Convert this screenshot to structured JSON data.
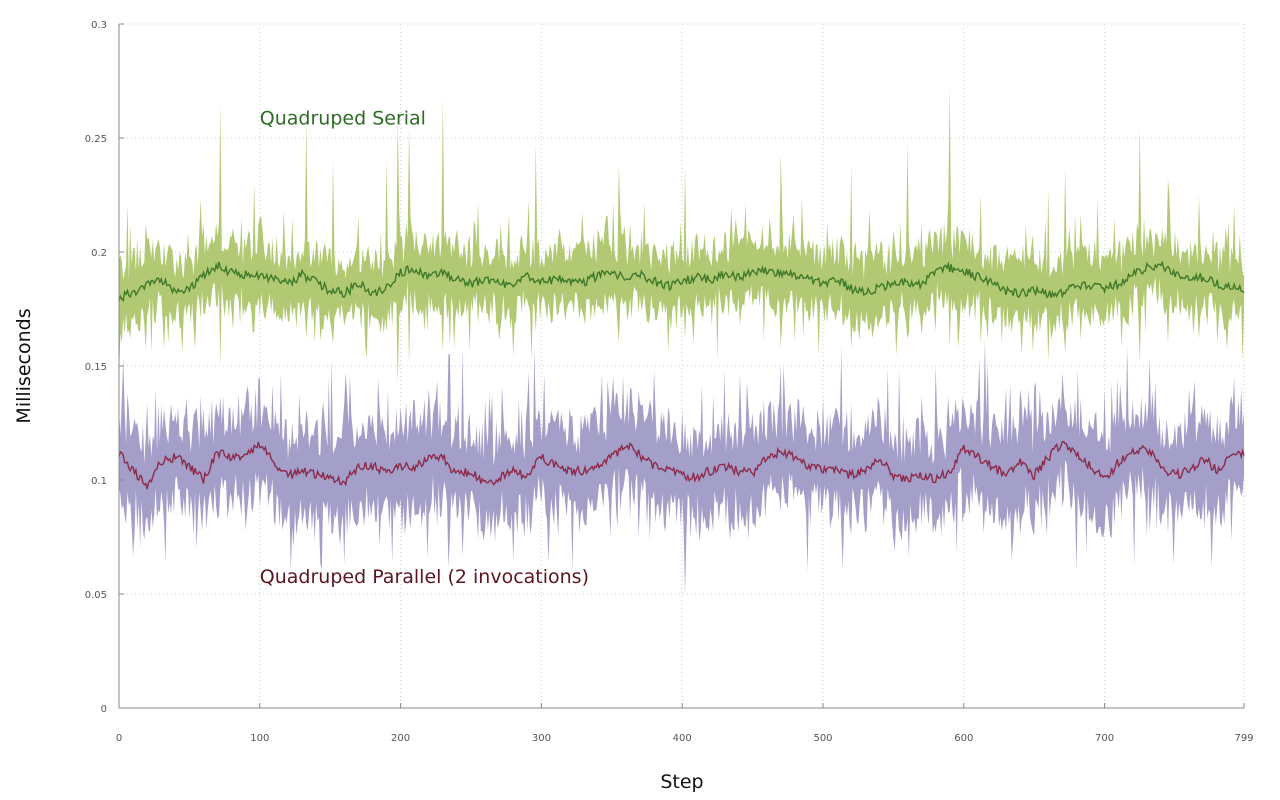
{
  "chart_data": {
    "type": "area",
    "title": "",
    "xlabel": "Step",
    "ylabel": "Milliseconds",
    "xlim": [
      0,
      799
    ],
    "ylim": [
      0,
      0.3
    ],
    "x_ticks": [
      0,
      100,
      200,
      300,
      400,
      500,
      600,
      700,
      799
    ],
    "x_tick_labels": [
      "0",
      "100",
      "200",
      "300",
      "400",
      "500",
      "600",
      "700",
      "799"
    ],
    "y_ticks": [
      0,
      0.05,
      0.1,
      0.15,
      0.2,
      0.25,
      0.3
    ],
    "y_tick_labels": [
      "0",
      "0.05",
      "0.1",
      "0.15",
      "0.2",
      "0.25",
      "0.3"
    ],
    "grid": true,
    "series": [
      {
        "name": "Quadruped Serial",
        "line_color": "#3f7a2a",
        "band_color": "#a9c466",
        "label_color": "#2e6b24",
        "mean_step": 10,
        "mean_values": [
          0.18,
          0.182,
          0.186,
          0.188,
          0.182,
          0.184,
          0.19,
          0.194,
          0.191,
          0.19,
          0.189,
          0.188,
          0.186,
          0.19,
          0.187,
          0.183,
          0.182,
          0.186,
          0.182,
          0.184,
          0.191,
          0.193,
          0.189,
          0.191,
          0.188,
          0.186,
          0.188,
          0.186,
          0.185,
          0.189,
          0.187,
          0.188,
          0.188,
          0.186,
          0.19,
          0.19,
          0.189,
          0.19,
          0.187,
          0.185,
          0.187,
          0.189,
          0.188,
          0.19,
          0.189,
          0.191,
          0.192,
          0.191,
          0.19,
          0.188,
          0.186,
          0.188,
          0.184,
          0.183,
          0.184,
          0.186,
          0.187,
          0.186,
          0.192,
          0.193,
          0.192,
          0.189,
          0.186,
          0.183,
          0.182,
          0.183,
          0.181,
          0.182,
          0.186,
          0.185,
          0.184,
          0.186,
          0.19,
          0.193,
          0.194,
          0.191,
          0.188,
          0.189,
          0.186,
          0.184
        ],
        "band_half_width": 0.013,
        "spike_steps": [
          8,
          72,
          96,
          133,
          152,
          190,
          198,
          206,
          230,
          296,
          355,
          402,
          470,
          520,
          560,
          590,
          612,
          660,
          672,
          725,
          745,
          767
        ],
        "spike_highs": [
          0.212,
          0.265,
          0.23,
          0.258,
          0.24,
          0.24,
          0.258,
          0.255,
          0.268,
          0.248,
          0.238,
          0.238,
          0.243,
          0.238,
          0.248,
          0.272,
          0.225,
          0.228,
          0.237,
          0.255,
          0.232,
          0.225
        ],
        "spike_lows": [
          0.162,
          0.15,
          0.165,
          0.162,
          0.16,
          0.165,
          0.142,
          0.15,
          0.16,
          0.165,
          0.16,
          0.162,
          0.158,
          0.158,
          0.162,
          0.158,
          0.16,
          0.162,
          0.156,
          0.152,
          0.16,
          0.162
        ]
      },
      {
        "name": "Quadruped Parallel (2 invocations)",
        "line_color": "#8e2a4a",
        "band_color": "#9b97c4",
        "label_color": "#5c1520",
        "mean_step": 10,
        "mean_values": [
          0.112,
          0.104,
          0.098,
          0.108,
          0.11,
          0.106,
          0.1,
          0.112,
          0.11,
          0.11,
          0.116,
          0.108,
          0.102,
          0.104,
          0.102,
          0.101,
          0.099,
          0.106,
          0.106,
          0.104,
          0.106,
          0.105,
          0.11,
          0.11,
          0.102,
          0.104,
          0.098,
          0.101,
          0.104,
          0.102,
          0.11,
          0.106,
          0.104,
          0.104,
          0.106,
          0.11,
          0.116,
          0.111,
          0.106,
          0.104,
          0.102,
          0.101,
          0.104,
          0.106,
          0.104,
          0.103,
          0.11,
          0.112,
          0.11,
          0.106,
          0.105,
          0.104,
          0.102,
          0.104,
          0.11,
          0.102,
          0.1,
          0.102,
          0.1,
          0.104,
          0.114,
          0.11,
          0.106,
          0.102,
          0.108,
          0.102,
          0.11,
          0.116,
          0.112,
          0.106,
          0.1,
          0.108,
          0.112,
          0.114,
          0.106,
          0.102,
          0.104,
          0.11,
          0.104,
          0.112
        ],
        "band_half_width": 0.018,
        "spike_steps": [
          20,
          55,
          70,
          100,
          160,
          210,
          220,
          235,
          260,
          290,
          370,
          470,
          520,
          570,
          600,
          630,
          640,
          670,
          700,
          760,
          790
        ],
        "spike_highs": [
          0.134,
          0.132,
          0.13,
          0.145,
          0.134,
          0.135,
          0.14,
          0.155,
          0.135,
          0.134,
          0.133,
          0.15,
          0.134,
          0.137,
          0.133,
          0.14,
          0.14,
          0.147,
          0.14,
          0.14,
          0.137
        ],
        "spike_lows": [
          0.085,
          0.07,
          0.083,
          0.088,
          0.083,
          0.085,
          0.085,
          0.075,
          0.085,
          0.086,
          0.09,
          0.086,
          0.084,
          0.08,
          0.085,
          0.078,
          0.076,
          0.088,
          0.083,
          0.086,
          0.084
        ]
      }
    ],
    "annotations": [
      {
        "text": "Quadruped Serial",
        "x": 100,
        "y": 0.259,
        "series": "Quadruped Serial"
      },
      {
        "text": "Quadruped Parallel (2 invocations)",
        "x": 100,
        "y": 0.058,
        "series": "Quadruped Parallel (2 invocations)"
      }
    ]
  }
}
